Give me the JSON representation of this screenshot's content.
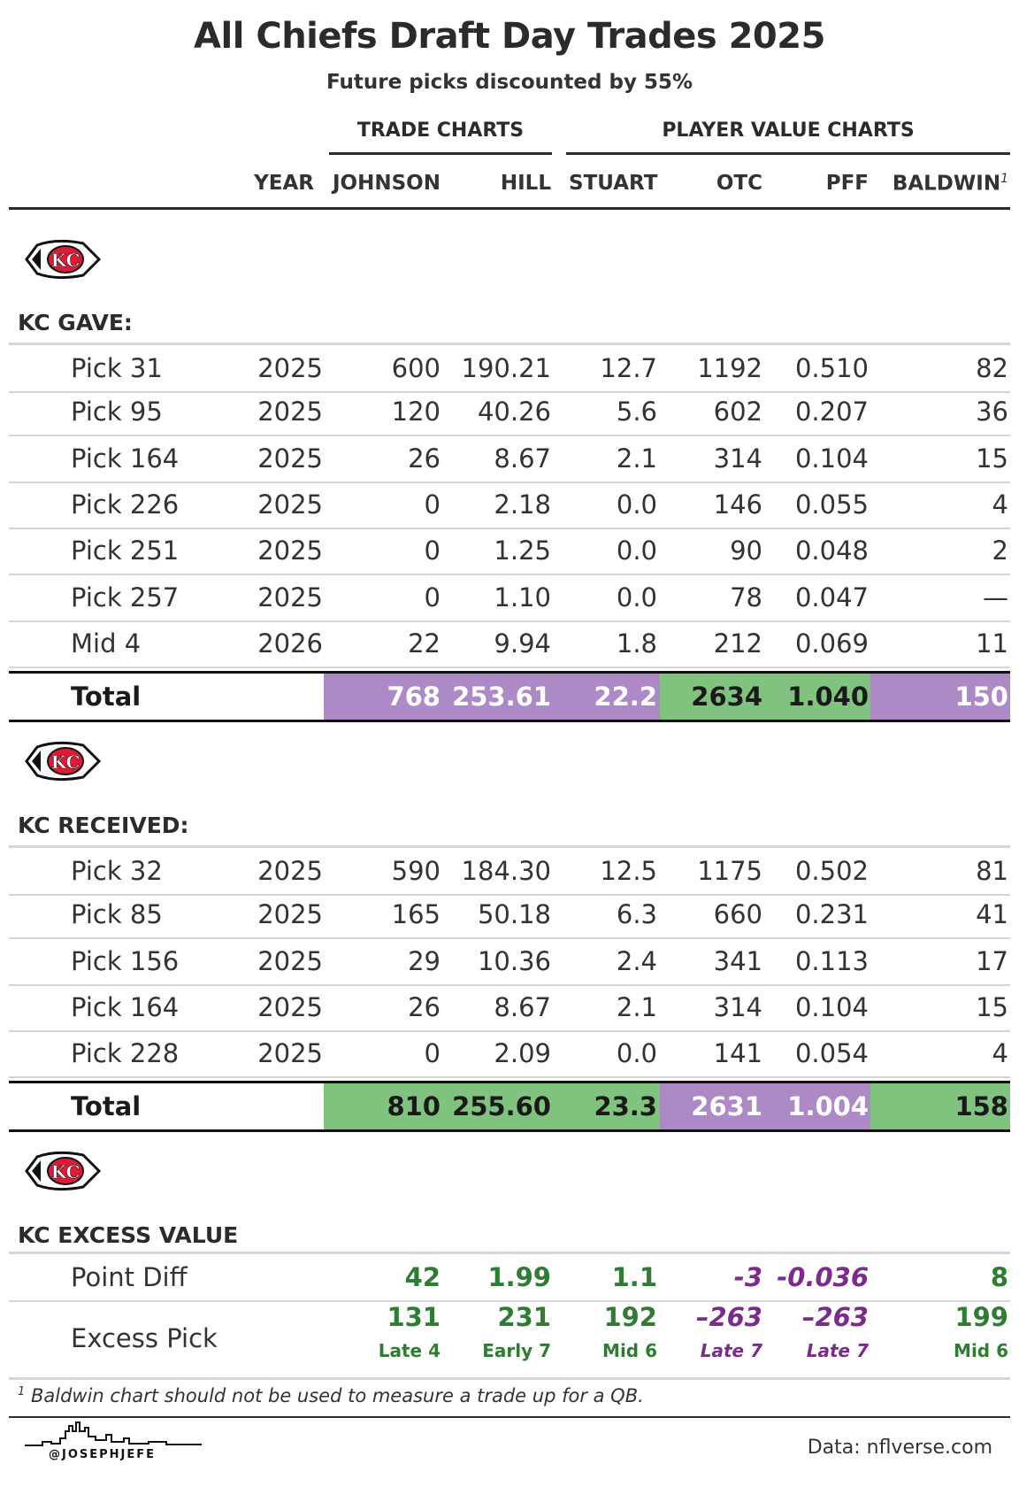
{
  "title": "All Chiefs Draft Day Trades 2025",
  "subtitle": "Future picks discounted by 55%",
  "groups": {
    "trade": "TRADE CHARTS",
    "player": "PLAYER VALUE CHARTS"
  },
  "columns": {
    "year": "YEAR",
    "johnson": "JOHNSON",
    "hill": "HILL",
    "stuart": "STUART",
    "otc": "OTC",
    "pff": "PFF",
    "baldwin": "BALDWIN",
    "baldwin_note": "1"
  },
  "colors": {
    "purple": "#ad89c6",
    "green": "#7fc37f",
    "positive_text": "#2e7d32",
    "negative_text": "#7b2b8a",
    "logo_red": "#e31837",
    "logo_gold": "#ffb81c"
  },
  "gave": {
    "title": "KC GAVE:",
    "rows": [
      {
        "label": "Pick 31",
        "year": "2025",
        "johnson": "600",
        "hill": "190.21",
        "stuart": "12.7",
        "otc": "1192",
        "pff": "0.510",
        "baldwin": "82"
      },
      {
        "label": "Pick 95",
        "year": "2025",
        "johnson": "120",
        "hill": "40.26",
        "stuart": "5.6",
        "otc": "602",
        "pff": "0.207",
        "baldwin": "36"
      },
      {
        "label": "Pick 164",
        "year": "2025",
        "johnson": "26",
        "hill": "8.67",
        "stuart": "2.1",
        "otc": "314",
        "pff": "0.104",
        "baldwin": "15"
      },
      {
        "label": "Pick 226",
        "year": "2025",
        "johnson": "0",
        "hill": "2.18",
        "stuart": "0.0",
        "otc": "146",
        "pff": "0.055",
        "baldwin": "4"
      },
      {
        "label": "Pick 251",
        "year": "2025",
        "johnson": "0",
        "hill": "1.25",
        "stuart": "0.0",
        "otc": "90",
        "pff": "0.048",
        "baldwin": "2"
      },
      {
        "label": "Pick 257",
        "year": "2025",
        "johnson": "0",
        "hill": "1.10",
        "stuart": "0.0",
        "otc": "78",
        "pff": "0.047",
        "baldwin": "—"
      },
      {
        "label": "Mid 4",
        "year": "2026",
        "johnson": "22",
        "hill": "9.94",
        "stuart": "1.8",
        "otc": "212",
        "pff": "0.069",
        "baldwin": "11"
      }
    ],
    "total": {
      "label": "Total",
      "johnson": "768",
      "hill": "253.61",
      "stuart": "22.2",
      "otc": "2634",
      "pff": "1.040",
      "baldwin": "150"
    }
  },
  "received": {
    "title": "KC RECEIVED:",
    "rows": [
      {
        "label": "Pick 32",
        "year": "2025",
        "johnson": "590",
        "hill": "184.30",
        "stuart": "12.5",
        "otc": "1175",
        "pff": "0.502",
        "baldwin": "81"
      },
      {
        "label": "Pick 85",
        "year": "2025",
        "johnson": "165",
        "hill": "50.18",
        "stuart": "6.3",
        "otc": "660",
        "pff": "0.231",
        "baldwin": "41"
      },
      {
        "label": "Pick 156",
        "year": "2025",
        "johnson": "29",
        "hill": "10.36",
        "stuart": "2.4",
        "otc": "341",
        "pff": "0.113",
        "baldwin": "17"
      },
      {
        "label": "Pick 164",
        "year": "2025",
        "johnson": "26",
        "hill": "8.67",
        "stuart": "2.1",
        "otc": "314",
        "pff": "0.104",
        "baldwin": "15"
      },
      {
        "label": "Pick 228",
        "year": "2025",
        "johnson": "0",
        "hill": "2.09",
        "stuart": "0.0",
        "otc": "141",
        "pff": "0.054",
        "baldwin": "4"
      }
    ],
    "total": {
      "label": "Total",
      "johnson": "810",
      "hill": "255.60",
      "stuart": "23.3",
      "otc": "2631",
      "pff": "1.004",
      "baldwin": "158"
    }
  },
  "excess": {
    "title": "KC EXCESS VALUE",
    "point_diff": {
      "label": "Point Diff",
      "johnson": "42",
      "hill": "1.99",
      "stuart": "1.1",
      "otc": "-3",
      "pff": "-0.036",
      "baldwin": "8"
    },
    "excess_pick": {
      "label": "Excess Pick",
      "johnson": "131",
      "hill": "231",
      "stuart": "192",
      "otc": "–263",
      "pff": "–263",
      "baldwin": "199",
      "johnson_sub": "Late 4",
      "hill_sub": "Early 7",
      "stuart_sub": "Mid 6",
      "otc_sub": "Late 7",
      "pff_sub": "Late 7",
      "baldwin_sub": "Mid 6"
    }
  },
  "footnote": {
    "mark": "1",
    "text": "Baldwin chart should not be used to measure a trade up for a QB."
  },
  "source": "Data: nflverse.com",
  "handle": "@JOSEPHJEFE"
}
